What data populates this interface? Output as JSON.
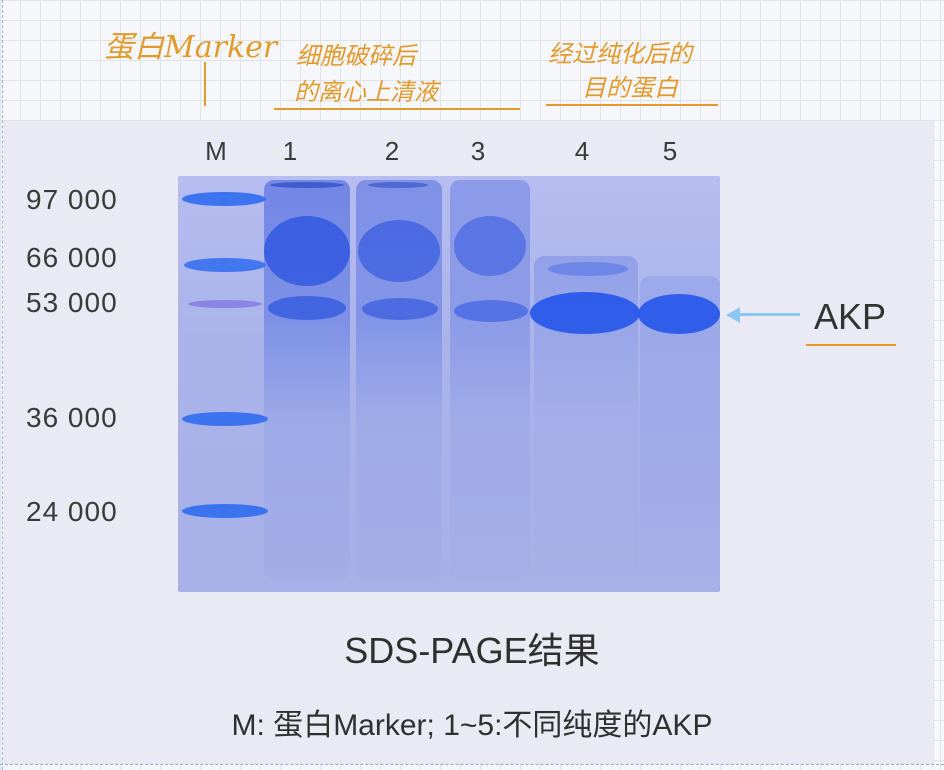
{
  "annotations": {
    "marker_note": "蛋白Marker",
    "lane123_line1": "细胞破碎后",
    "lane123_line2": "的离心上清液",
    "lane45_line1": "经过纯化后的",
    "lane45_line2": "目的蛋白"
  },
  "lanes": [
    "M",
    "1",
    "2",
    "3",
    "4",
    "5"
  ],
  "mw_labels": [
    "97 000",
    "66 000",
    "53 000",
    "36 000",
    "24 000"
  ],
  "band_label": "AKP",
  "caption": "SDS-PAGE结果",
  "legend": "M:  蛋白Marker;  1~5:不同纯度的AKP",
  "colors": {
    "annotation": "#e39a2c",
    "gel_background": "#aab4ea",
    "marker_band": "#2f6bf0",
    "protein_band": "#2a58ea",
    "arrow": "#8cc6f2"
  }
}
